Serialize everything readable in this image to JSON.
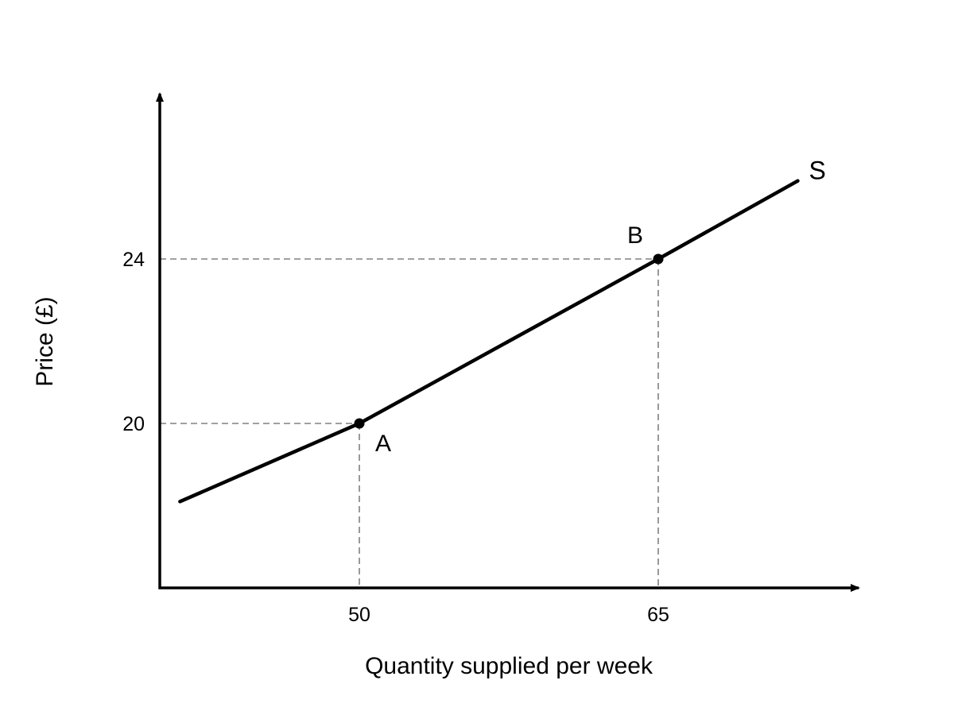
{
  "chart_data": {
    "type": "line",
    "title": "",
    "xlabel": "Quantity supplied per week",
    "ylabel": "Price (£)",
    "x_ticks": [
      "50",
      "65"
    ],
    "y_ticks": [
      "20",
      "24"
    ],
    "series": [
      {
        "name": "S",
        "x": [
          41,
          50,
          65,
          72
        ],
        "y": [
          18.1,
          20,
          24,
          25.9
        ]
      }
    ],
    "points": [
      {
        "label": "A",
        "x": 50,
        "y": 20
      },
      {
        "label": "B",
        "x": 65,
        "y": 24
      }
    ],
    "xlim": [
      38,
      73
    ],
    "ylim": [
      16,
      28
    ],
    "grid": false,
    "reference_lines": "dashed from points A and B to both axes",
    "colors": {
      "curve": "#000000",
      "guides": "#808080"
    }
  }
}
